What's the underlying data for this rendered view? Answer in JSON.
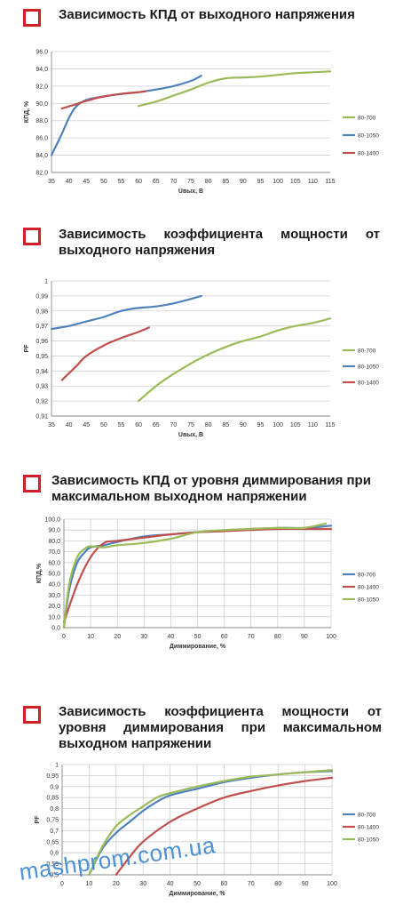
{
  "watermark": "mashprom.com.ua",
  "charts": [
    {
      "title": "Зависимость КПД от выходного напряжения",
      "chart_data": {
        "type": "line",
        "xlabel": "Uвых, В",
        "ylabel": "КПД, %",
        "xlim": [
          35,
          115
        ],
        "ylim": [
          82,
          96
        ],
        "x_ticks": [
          "35",
          "40",
          "45",
          "50",
          "55",
          "60",
          "65",
          "70",
          "75",
          "80",
          "85",
          "90",
          "95",
          "100",
          "105",
          "110",
          "115"
        ],
        "y_ticks": [
          "82,0",
          "84,0",
          "86,0",
          "88,0",
          "90,0",
          "92,0",
          "94,0",
          "96,0"
        ],
        "grid": "horizontal",
        "legend_position": "right",
        "series": [
          {
            "name": "80-700",
            "color": "#9bbb59",
            "x": [
              60,
              65,
              70,
              75,
              80,
              85,
              90,
              95,
              100,
              105,
              110,
              115
            ],
            "y": [
              89.7,
              90.2,
              90.9,
              91.6,
              92.4,
              92.9,
              93.0,
              93.1,
              93.3,
              93.5,
              93.6,
              93.7
            ]
          },
          {
            "name": "80-1050",
            "color": "#4f81bd",
            "x": [
              35,
              38,
              40,
              42,
              45,
              50,
              55,
              60,
              65,
              70,
              75,
              78
            ],
            "y": [
              84.0,
              86.5,
              88.3,
              89.6,
              90.4,
              90.8,
              91.1,
              91.3,
              91.6,
              92.0,
              92.6,
              93.2
            ]
          },
          {
            "name": "80-1400",
            "color": "#c0504d",
            "x": [
              38,
              42,
              45,
              50,
              55,
              60,
              62
            ],
            "y": [
              89.4,
              89.9,
              90.3,
              90.8,
              91.1,
              91.3,
              91.4
            ]
          }
        ]
      }
    },
    {
      "title": "Зависимость коэффициента мощности от выходного напряжения",
      "chart_data": {
        "type": "line",
        "xlabel": "Uвых, В",
        "ylabel": "PF",
        "xlim": [
          35,
          115
        ],
        "ylim": [
          0.91,
          1.0
        ],
        "x_ticks": [
          "35",
          "40",
          "45",
          "50",
          "55",
          "60",
          "65",
          "70",
          "75",
          "80",
          "85",
          "90",
          "95",
          "100",
          "105",
          "110",
          "115"
        ],
        "y_ticks": [
          "0,91",
          "0,92",
          "0,93",
          "0,94",
          "0,95",
          "0,96",
          "0,97",
          "0,98",
          "0,99",
          "1"
        ],
        "grid": "horizontal",
        "legend_position": "right",
        "series": [
          {
            "name": "80-700",
            "color": "#9bbb59",
            "x": [
              60,
              65,
              70,
              75,
              80,
              85,
              90,
              95,
              100,
              105,
              110,
              115
            ],
            "y": [
              0.92,
              0.93,
              0.938,
              0.945,
              0.951,
              0.956,
              0.96,
              0.963,
              0.967,
              0.97,
              0.972,
              0.975
            ]
          },
          {
            "name": "80-1050",
            "color": "#4f81bd",
            "x": [
              35,
              40,
              45,
              50,
              55,
              60,
              65,
              70,
              75,
              78
            ],
            "y": [
              0.968,
              0.97,
              0.973,
              0.976,
              0.98,
              0.982,
              0.983,
              0.985,
              0.988,
              0.99
            ]
          },
          {
            "name": "80-1400",
            "color": "#c0504d",
            "x": [
              38,
              42,
              45,
              50,
              55,
              60,
              63
            ],
            "y": [
              0.934,
              0.943,
              0.95,
              0.957,
              0.962,
              0.966,
              0.969
            ]
          }
        ]
      }
    },
    {
      "title": "Зависимость КПД от уровня диммирования при максимальном выходном напряжении",
      "chart_data": {
        "type": "line",
        "xlabel": "Диммирование, %",
        "ylabel": "КПД,%",
        "xlim": [
          0,
          100
        ],
        "ylim": [
          0,
          100
        ],
        "x_ticks": [
          "0",
          "10",
          "20",
          "30",
          "40",
          "50",
          "60",
          "70",
          "80",
          "90",
          "100"
        ],
        "y_ticks": [
          "0,0",
          "10,0",
          "20,0",
          "30,0",
          "40,0",
          "50,0",
          "60,0",
          "70,0",
          "80,0",
          "90,0",
          "100,0"
        ],
        "grid": "both",
        "legend_position": "right",
        "series": [
          {
            "name": "80-700",
            "color": "#4f81bd",
            "x": [
              0,
              2,
              5,
              8,
              10,
              15,
              20,
              30,
              40,
              50,
              60,
              70,
              80,
              90,
              100
            ],
            "y": [
              0,
              35,
              60,
              70,
              74,
              76,
              79,
              84,
              86,
              88,
              89,
              91,
              92,
              92,
              94
            ]
          },
          {
            "name": "80-1400",
            "color": "#c0504d",
            "x": [
              0,
              5,
              10,
              15,
              20,
              30,
              40,
              50,
              60,
              70,
              80,
              90,
              100
            ],
            "y": [
              5,
              40,
              65,
              78,
              80,
              83,
              86,
              88,
              89,
              90,
              91,
              91,
              91
            ]
          },
          {
            "name": "80-1050",
            "color": "#9bbb59",
            "x": [
              0,
              2,
              5,
              8,
              10,
              15,
              20,
              30,
              40,
              50,
              60,
              70,
              80,
              90,
              98
            ],
            "y": [
              0,
              40,
              65,
              73,
              75,
              74,
              76,
              78,
              82,
              88,
              90,
              91,
              92,
              92,
              96
            ]
          }
        ]
      }
    },
    {
      "title": "Зависимость коэффициента мощности от уровня диммирования при максимальном выходном напряжении",
      "chart_data": {
        "type": "line",
        "xlabel": "Диммирование, %",
        "ylabel": "PF",
        "xlim": [
          0,
          100
        ],
        "ylim": [
          0.5,
          1.0
        ],
        "x_ticks": [
          "0",
          "10",
          "20",
          "30",
          "40",
          "50",
          "60",
          "70",
          "80",
          "90",
          "100"
        ],
        "y_ticks": [
          "0,5",
          "0,55",
          "0,6",
          "0,65",
          "0,7",
          "0,75",
          "0,8",
          "0,85",
          "0,9",
          "0,95",
          "1"
        ],
        "grid": "both",
        "legend_position": "right",
        "series": [
          {
            "name": "80-700",
            "color": "#4f81bd",
            "x": [
              10,
              15,
              20,
              25,
              30,
              35,
              40,
              50,
              60,
              70,
              80,
              90,
              100
            ],
            "y": [
              0.5,
              0.62,
              0.69,
              0.74,
              0.79,
              0.83,
              0.86,
              0.89,
              0.92,
              0.94,
              0.955,
              0.965,
              0.97
            ]
          },
          {
            "name": "80-1400",
            "color": "#c0504d",
            "x": [
              20,
              25,
              30,
              40,
              50,
              60,
              70,
              80,
              90,
              100
            ],
            "y": [
              0.5,
              0.58,
              0.65,
              0.74,
              0.8,
              0.85,
              0.88,
              0.905,
              0.925,
              0.94
            ]
          },
          {
            "name": "80-1050",
            "color": "#9bbb59",
            "x": [
              10,
              15,
              20,
              25,
              30,
              35,
              40,
              50,
              60,
              70,
              80,
              90,
              100
            ],
            "y": [
              0.5,
              0.63,
              0.72,
              0.77,
              0.81,
              0.85,
              0.87,
              0.9,
              0.925,
              0.945,
              0.955,
              0.965,
              0.975
            ]
          }
        ]
      }
    }
  ]
}
